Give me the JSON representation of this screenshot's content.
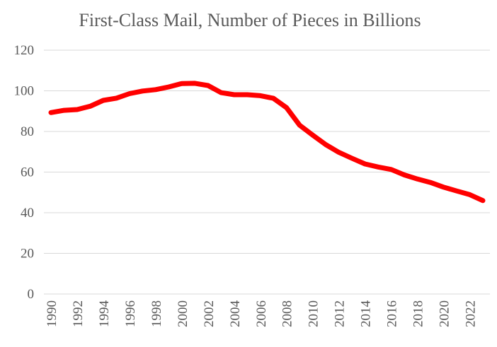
{
  "chart_data": {
    "type": "line",
    "title": "First-Class Mail, Number of Pieces in Billions",
    "xlabel": "",
    "ylabel": "",
    "ylim": [
      0,
      120
    ],
    "yticks": [
      0,
      20,
      40,
      60,
      80,
      100,
      120
    ],
    "xlim": [
      1990,
      2023
    ],
    "x_tick_labels": [
      "1990",
      "1992",
      "1994",
      "1996",
      "1998",
      "2000",
      "2002",
      "2004",
      "2006",
      "2008",
      "2010",
      "2012",
      "2014",
      "2016",
      "2018",
      "2020",
      "2022"
    ],
    "grid": true,
    "legend": "none",
    "series": [
      {
        "name": "First-Class Mail",
        "color": "#ff0000",
        "x": [
          1990,
          1991,
          1992,
          1993,
          1994,
          1995,
          1996,
          1997,
          1998,
          1999,
          2000,
          2001,
          2002,
          2003,
          2004,
          2005,
          2006,
          2007,
          2008,
          2009,
          2010,
          2011,
          2012,
          2013,
          2014,
          2015,
          2016,
          2017,
          2018,
          2019,
          2020,
          2021,
          2022,
          2023
        ],
        "values": [
          89.3,
          90.4,
          90.8,
          92.4,
          95.3,
          96.4,
          98.6,
          99.9,
          100.6,
          101.9,
          103.6,
          103.7,
          102.6,
          99.1,
          98.1,
          98.1,
          97.6,
          96.3,
          91.7,
          83.1,
          78.2,
          73.5,
          69.7,
          66.8,
          64.0,
          62.5,
          61.3,
          58.6,
          56.6,
          54.9,
          52.6,
          50.7,
          48.9,
          46.0
        ]
      }
    ]
  }
}
